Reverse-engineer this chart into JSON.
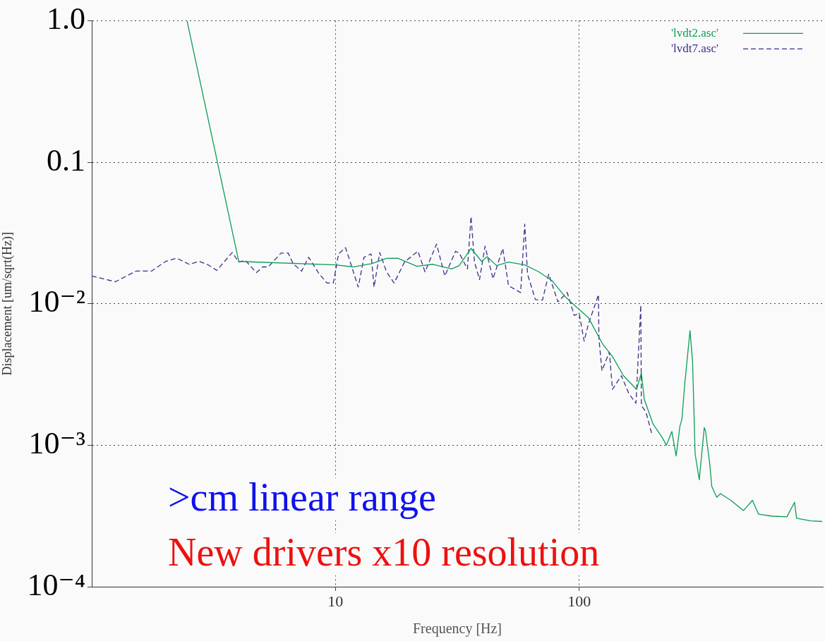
{
  "chart_data": {
    "type": "line",
    "xlabel": "Frequency [Hz]",
    "ylabel": "Displacement [um/sqrt(Hz)]",
    "log": "xy",
    "xlim": [
      1,
      1000
    ],
    "xticks": [
      10,
      100
    ],
    "ylim": [
      0.0001,
      1
    ],
    "yticks": [
      {
        "value": 1,
        "label": "1.0"
      },
      0.1,
      {
        "value": 0.01,
        "label": "10⁻²"
      },
      {
        "value": 0.001,
        "label": "10⁻³"
      },
      {
        "value": 0.0001,
        "label": "10⁻⁴"
      }
    ],
    "grid": true,
    "legend": "top right",
    "annotations": [
      ">cm linear range",
      "New drivers x10 resolution"
    ],
    "series": [
      {
        "name": "'lvdt2.asc'",
        "color": "#0a9e55",
        "line_style": "solid",
        "x": [
          2.46,
          4.01,
          10.0,
          11.8,
          14.1,
          16.2,
          18.0,
          21.6,
          25.1,
          30.0,
          32.2,
          36.0,
          39.8,
          41.9,
          45.8,
          51.3,
          59.8,
          68.3,
          77.5,
          87.6,
          98.6,
          109,
          125,
          137,
          152,
          172,
          180,
          185,
          201,
          218,
          228,
          240,
          250,
          259,
          264,
          271,
          285,
          292,
          299,
          311,
          326,
          330,
          343,
          350,
          367,
          380,
          419,
          472,
          514,
          544,
          621,
          712,
          765,
          780,
          890,
          993
        ],
        "values": [
          1.0,
          0.0199,
          0.0188,
          0.0182,
          0.0192,
          0.0209,
          0.021,
          0.0184,
          0.019,
          0.0176,
          0.0186,
          0.0246,
          0.0199,
          0.0215,
          0.0186,
          0.0197,
          0.0188,
          0.0168,
          0.0145,
          0.0112,
          0.0093,
          0.008,
          0.00517,
          0.00423,
          0.0031,
          0.00248,
          0.00325,
          0.00211,
          0.00141,
          0.00115,
          0.001,
          0.00125,
          0.00084,
          0.00136,
          0.00153,
          0.00268,
          0.00645,
          0.00388,
          0.00087,
          0.00057,
          0.00133,
          0.00126,
          0.00075,
          0.000512,
          0.000428,
          0.000455,
          0.000408,
          0.000345,
          0.000408,
          0.000326,
          0.000315,
          0.000312,
          0.000395,
          0.000305,
          0.000292,
          0.000289
        ]
      },
      {
        "name": "'lvdt7.asc'",
        "color": "#3a2f8a",
        "line_style": "dashed",
        "x": [
          1.0,
          1.25,
          1.52,
          1.76,
          2.01,
          2.23,
          2.51,
          2.76,
          3.01,
          3.26,
          3.77,
          4.01,
          4.26,
          4.74,
          5.03,
          5.3,
          5.98,
          6.4,
          6.7,
          7.26,
          7.76,
          8.58,
          9.23,
          9.8,
          10.3,
          11.0,
          11.6,
          12.4,
          13.1,
          14.0,
          14.4,
          15.2,
          16.2,
          17.4,
          19.2,
          21.8,
          23.3,
          26.0,
          28.1,
          31.1,
          32.2,
          34.8,
          36.0,
          37.2,
          39.0,
          41.1,
          44.3,
          48.6,
          51.3,
          57.5,
          59.8,
          61.4,
          66.1,
          70.7,
          75.0,
          81.8,
          89.3,
          95.4,
          100,
          104.8,
          109,
          120,
          120.5,
          124,
          133,
          137,
          149,
          160,
          171,
          179,
          180,
          188,
          195,
          199
        ],
        "values": [
          0.0157,
          0.0143,
          0.017,
          0.017,
          0.0199,
          0.021,
          0.019,
          0.0199,
          0.0188,
          0.0172,
          0.023,
          0.0197,
          0.0203,
          0.0166,
          0.0182,
          0.0182,
          0.0228,
          0.0228,
          0.0192,
          0.017,
          0.0213,
          0.0162,
          0.014,
          0.014,
          0.0225,
          0.0249,
          0.0188,
          0.0131,
          0.0213,
          0.0225,
          0.0131,
          0.023,
          0.0168,
          0.014,
          0.0197,
          0.0235,
          0.0168,
          0.0264,
          0.0157,
          0.0235,
          0.0228,
          0.0176,
          0.0413,
          0.0197,
          0.0148,
          0.0255,
          0.015,
          0.0246,
          0.0134,
          0.012,
          0.0365,
          0.0162,
          0.0107,
          0.0106,
          0.0162,
          0.0103,
          0.012,
          0.00826,
          0.00855,
          0.00544,
          0.00713,
          0.0116,
          0.0057,
          0.00336,
          0.00455,
          0.00248,
          0.0031,
          0.00231,
          0.00198,
          0.00977,
          0.00191,
          0.00171,
          0.00136,
          0.00118
        ]
      }
    ]
  }
}
